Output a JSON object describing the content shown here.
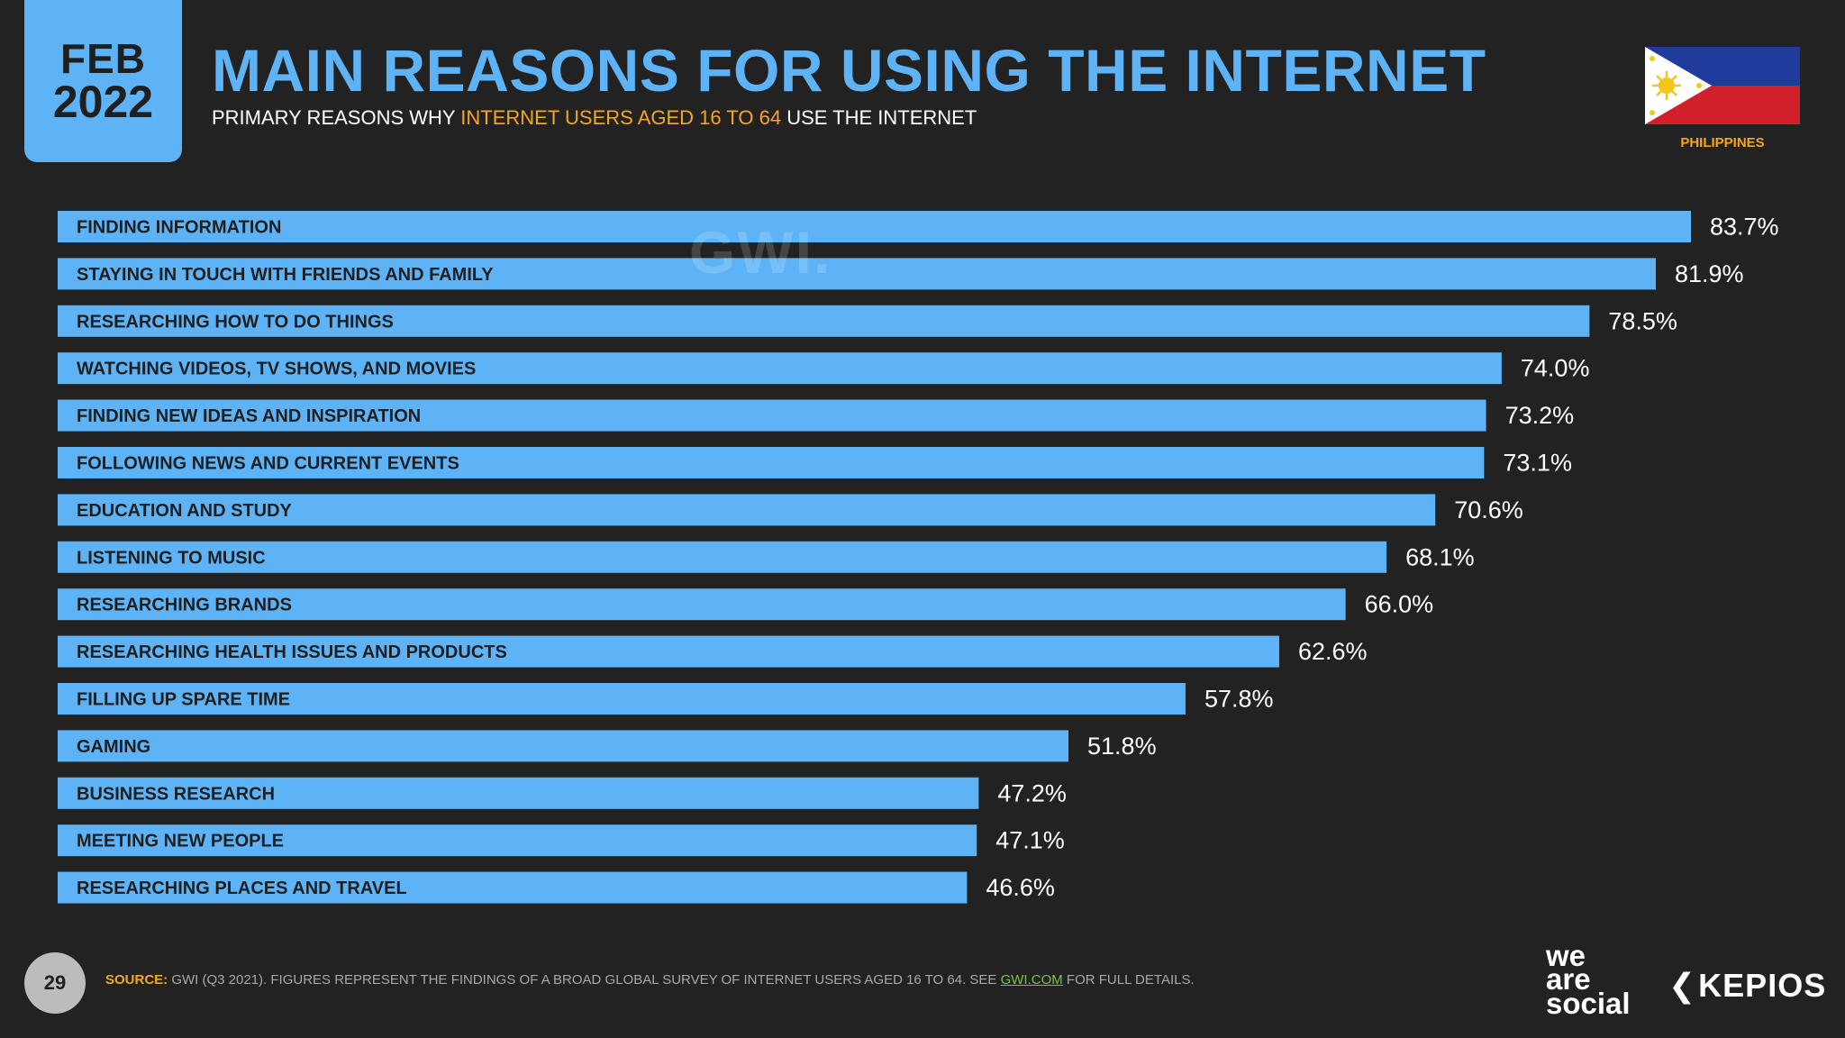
{
  "header": {
    "month": "FEB",
    "year": "2022",
    "title": "MAIN REASONS FOR USING THE INTERNET",
    "subtitle_pre": "PRIMARY REASONS WHY ",
    "subtitle_highlight": "INTERNET USERS AGED 16 TO 64",
    "subtitle_post": " USE THE INTERNET",
    "country": "PHILIPPINES"
  },
  "watermark": "GWI.",
  "footer": {
    "page_number": "29",
    "source_label": "SOURCE:",
    "source_text": " GWI (Q3 2021). FIGURES REPRESENT THE FINDINGS OF A BROAD GLOBAL SURVEY OF INTERNET USERS AGED 16 TO 64. SEE ",
    "source_link": "GWI.COM",
    "source_end": " FOR FULL DETAILS.",
    "logo_was": [
      "we",
      "are",
      "social"
    ],
    "logo_kepios": "KEPIOS"
  },
  "colors": {
    "bar": "#5eb3f6",
    "background": "#222222",
    "accent": "#f5a623",
    "label": "#1f1f1f",
    "value": "#ffffff"
  },
  "chart_data": {
    "type": "bar",
    "orientation": "horizontal",
    "title": "MAIN REASONS FOR USING THE INTERNET",
    "xlabel": "",
    "ylabel": "",
    "value_suffix": "%",
    "xlim": [
      0,
      100
    ],
    "categories": [
      "FINDING INFORMATION",
      "STAYING IN TOUCH WITH FRIENDS AND FAMILY",
      "RESEARCHING HOW TO DO THINGS",
      "WATCHING VIDEOS, TV SHOWS, AND MOVIES",
      "FINDING NEW IDEAS AND INSPIRATION",
      "FOLLOWING NEWS AND CURRENT EVENTS",
      "EDUCATION AND STUDY",
      "LISTENING TO MUSIC",
      "RESEARCHING BRANDS",
      "RESEARCHING HEALTH ISSUES AND PRODUCTS",
      "FILLING UP SPARE TIME",
      "GAMING",
      "BUSINESS RESEARCH",
      "MEETING NEW PEOPLE",
      "RESEARCHING PLACES AND TRAVEL"
    ],
    "values": [
      83.7,
      81.9,
      78.5,
      74.0,
      73.2,
      73.1,
      70.6,
      68.1,
      66.0,
      62.6,
      57.8,
      51.8,
      47.2,
      47.1,
      46.6
    ],
    "value_labels": [
      "83.7%",
      "81.9%",
      "78.5%",
      "74.0%",
      "73.2%",
      "73.1%",
      "70.6%",
      "68.1%",
      "66.0%",
      "62.6%",
      "57.8%",
      "51.8%",
      "47.2%",
      "47.1%",
      "46.6%"
    ]
  }
}
